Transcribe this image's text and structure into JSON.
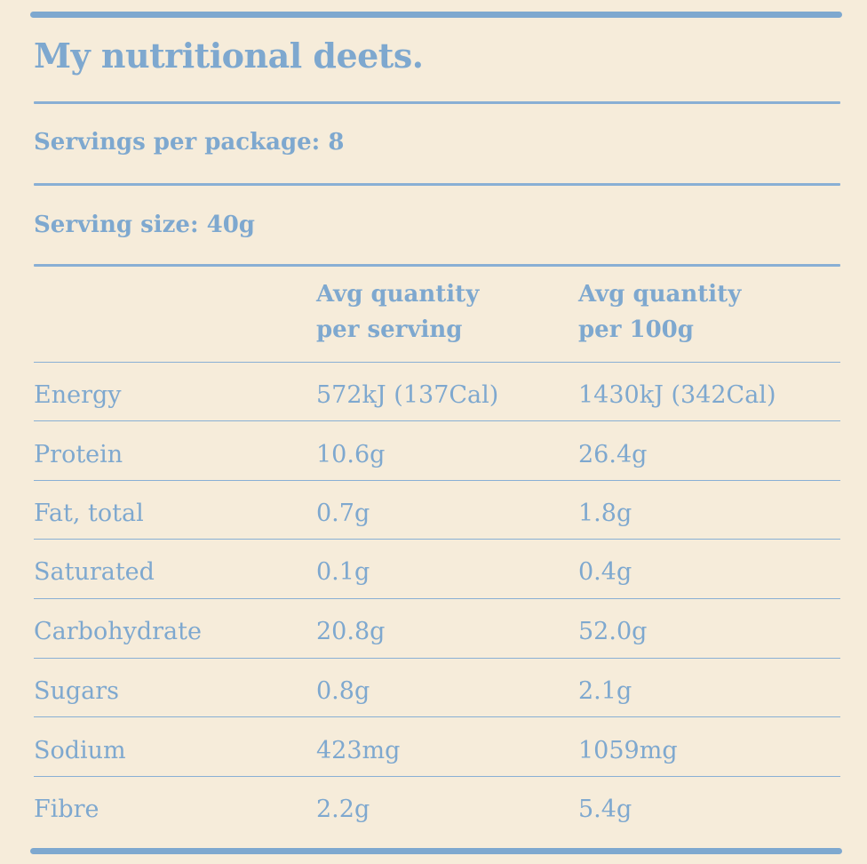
{
  "title": "My nutritional deets.",
  "servings_per_package": "Servings per package: 8",
  "serving_size": "Serving size: 40g",
  "columns": {
    "per_serving": [
      "Avg quantity",
      "per serving"
    ],
    "per_100g": [
      "Avg quantity",
      "per 100g"
    ]
  },
  "rows": [
    {
      "name": "Energy",
      "per_serving": "572kJ (137Cal)",
      "per_100g": "1430kJ (342Cal)"
    },
    {
      "name": "Protein",
      "per_serving": "10.6g",
      "per_100g": "26.4g"
    },
    {
      "name": "Fat, total",
      "per_serving": "0.7g",
      "per_100g": "1.8g"
    },
    {
      "name": "Saturated",
      "per_serving": "0.1g",
      "per_100g": "0.4g"
    },
    {
      "name": "Carbohydrate",
      "per_serving": "20.8g",
      "per_100g": "52.0g"
    },
    {
      "name": "Sugars",
      "per_serving": "0.8g",
      "per_100g": "2.1g"
    },
    {
      "name": "Sodium",
      "per_serving": "423mg",
      "per_100g": "1059mg"
    },
    {
      "name": "Fibre",
      "per_serving": "2.2g",
      "per_100g": "5.4g"
    }
  ],
  "colors": {
    "background": "#f6ecda",
    "ink": "#7ea8cf"
  }
}
